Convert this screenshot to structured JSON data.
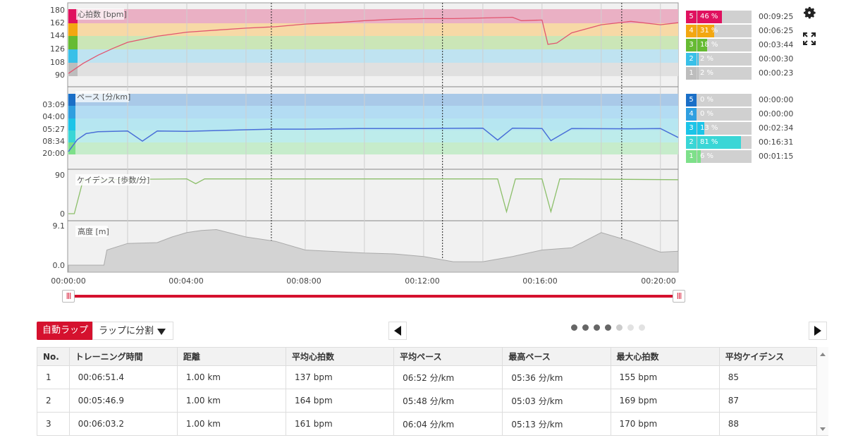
{
  "colors": {
    "accent": "#d5112e",
    "hr_line": "#e2556f",
    "pace_line": "#4a6fd8",
    "cadence_line": "#8cbf6a",
    "altitude_fill": "#d3d3d3"
  },
  "charts": {
    "hr": {
      "title": "心拍数 [bpm]",
      "ticks": [
        "180",
        "162",
        "144",
        "126",
        "108",
        "90"
      ]
    },
    "pace": {
      "title": "ペース [分/km]",
      "ticks": [
        "03:09",
        "04:00",
        "05:27",
        "08:34",
        "20:00"
      ]
    },
    "cadence": {
      "title": "ケイデンス [歩数/分]",
      "ticks": [
        "90",
        "0"
      ]
    },
    "altitude": {
      "title": "高度 [m]",
      "ticks": [
        "9.1",
        "0.0"
      ]
    },
    "x_ticks": [
      "00:00:00",
      "00:04:00",
      "00:08:00",
      "00:12:00",
      "00:16:00",
      "00:20:00"
    ]
  },
  "chart_data": [
    {
      "type": "line",
      "title": "心拍数 [bpm]",
      "x_unit": "min",
      "ylim": [
        81,
        180
      ],
      "x": [
        0,
        0.5,
        1,
        1.5,
        2,
        3,
        4,
        5,
        6,
        7,
        8,
        9,
        10,
        11,
        12,
        13,
        14,
        15,
        15.3,
        16,
        16.2,
        16.5,
        17,
        18,
        19,
        20,
        20.6
      ],
      "values": [
        85,
        100,
        112,
        122,
        131,
        140,
        146,
        149,
        152,
        154,
        158,
        160,
        163,
        165,
        166,
        166,
        167,
        168,
        163,
        164,
        128,
        130,
        145,
        157,
        162,
        157,
        160
      ]
    },
    {
      "type": "line",
      "title": "ペース [分/km]",
      "x_unit": "min",
      "x": [
        0,
        0.3,
        0.6,
        1,
        2,
        2.5,
        3,
        4,
        6,
        7,
        8,
        10,
        12,
        14,
        14.5,
        15,
        16,
        16.3,
        17,
        19,
        20,
        20.6
      ],
      "values": [
        "20:00",
        "08:34",
        "07:00",
        "06:30",
        "06:20",
        "10:00",
        "06:20",
        "06:25",
        "06:00",
        "05:50",
        "05:50",
        "05:40",
        "05:40",
        "05:35",
        "09:00",
        "05:35",
        "05:40",
        "09:30",
        "05:40",
        "05:45",
        "05:40",
        "08:00"
      ]
    },
    {
      "type": "line",
      "title": "ケイデンス [歩数/分]",
      "x_unit": "min",
      "ylim": [
        0,
        90
      ],
      "x": [
        0,
        0.2,
        0.5,
        4,
        4.3,
        4.6,
        12,
        14.5,
        14.8,
        15.1,
        16,
        16.3,
        16.6,
        20.6
      ],
      "values": [
        0,
        0,
        85,
        87,
        75,
        87,
        87,
        87,
        5,
        87,
        87,
        5,
        87,
        85
      ]
    },
    {
      "type": "area",
      "title": "高度 [m]",
      "x_unit": "min",
      "ylim": [
        0,
        9.1
      ],
      "x": [
        0,
        1.2,
        1.3,
        2,
        3,
        3.5,
        4,
        4.5,
        5,
        6,
        7,
        8,
        10,
        11,
        12,
        13,
        14,
        15,
        16,
        17,
        18,
        19,
        20,
        20.6
      ],
      "values": [
        0,
        0,
        3.5,
        5,
        5.2,
        6.5,
        7.5,
        8,
        8.2,
        6.5,
        5.5,
        3.5,
        2.8,
        2.6,
        2,
        0.8,
        0.8,
        2,
        3.5,
        4,
        7.5,
        5.5,
        3,
        3.2
      ]
    }
  ],
  "zones": {
    "hr": [
      {
        "n": "5",
        "pct": "46 %",
        "time": "00:09:25",
        "color": "#e0115f",
        "frac": 0.46
      },
      {
        "n": "4",
        "pct": "31 %",
        "time": "00:06:25",
        "color": "#f3a711",
        "frac": 0.31
      },
      {
        "n": "3",
        "pct": "18 %",
        "time": "00:03:44",
        "color": "#66bb33",
        "frac": 0.18
      },
      {
        "n": "2",
        "pct": "2 %",
        "time": "00:00:30",
        "color": "#39c0e8",
        "frac": 0.02
      },
      {
        "n": "1",
        "pct": "2 %",
        "time": "00:00:23",
        "color": "#bdbdbd",
        "frac": 0.02
      }
    ],
    "pace": [
      {
        "n": "5",
        "pct": "0 %",
        "time": "00:00:00",
        "color": "#1a6fc7",
        "frac": 0.0
      },
      {
        "n": "4",
        "pct": "0 %",
        "time": "00:00:00",
        "color": "#2f9fe0",
        "frac": 0.0
      },
      {
        "n": "3",
        "pct": "13 %",
        "time": "00:02:34",
        "color": "#1cc4e8",
        "frac": 0.13
      },
      {
        "n": "2",
        "pct": "81 %",
        "time": "00:16:31",
        "color": "#3ad6d6",
        "frac": 0.81
      },
      {
        "n": "1",
        "pct": "6 %",
        "time": "00:01:15",
        "color": "#7ee08a",
        "frac": 0.06
      }
    ]
  },
  "laps": {
    "auto_label": "自動ラップ",
    "split_label": "ラップに分割",
    "headers": [
      "No.",
      "トレーニング時間",
      "距離",
      "平均心拍数",
      "平均ペース",
      "最高ペース",
      "最大心拍数",
      "平均ケイデンス"
    ],
    "rows": [
      [
        "1",
        "00:06:51.4",
        "1.00 km",
        "137 bpm",
        "06:52 分/km",
        "05:36 分/km",
        "155 bpm",
        "85"
      ],
      [
        "2",
        "00:05:46.9",
        "1.00 km",
        "164 bpm",
        "05:48 分/km",
        "05:03 分/km",
        "169 bpm",
        "87"
      ],
      [
        "3",
        "00:06:03.2",
        "1.00 km",
        "161 bpm",
        "06:04 分/km",
        "05:13 分/km",
        "170 bpm",
        "88"
      ]
    ]
  },
  "icons": {
    "settings": "gear-icon",
    "fullscreen": "fullscreen-icon",
    "prev": "triangle-left-icon",
    "next": "triangle-right-icon",
    "dropdown": "triangle-down-icon"
  }
}
